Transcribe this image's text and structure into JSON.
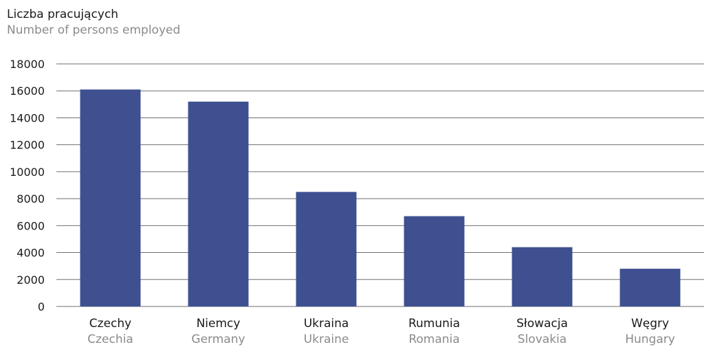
{
  "title": "Liczba pracujących",
  "subtitle": "Number of persons employed",
  "colors": {
    "bar": "#3e5090",
    "grid": "#6e6e6e"
  },
  "chart_data": {
    "type": "bar",
    "title": "Liczba pracujących",
    "subtitle": "Number of persons employed",
    "categories": [
      "Czechy",
      "Niemcy",
      "Ukraina",
      "Rumunia",
      "Słowacja",
      "Węgry"
    ],
    "categories_en": [
      "Czechia",
      "Germany",
      "Ukraine",
      "Romania",
      "Slovakia",
      "Hungary"
    ],
    "values": [
      16100,
      15200,
      8500,
      6700,
      4400,
      2800
    ],
    "ylim": [
      0,
      18000
    ],
    "yticks": [
      "0",
      "2000",
      "4000",
      "6000",
      "8000",
      "10000",
      "12000",
      "14000",
      "16000",
      "18000"
    ],
    "grid": true,
    "legend": "none"
  }
}
